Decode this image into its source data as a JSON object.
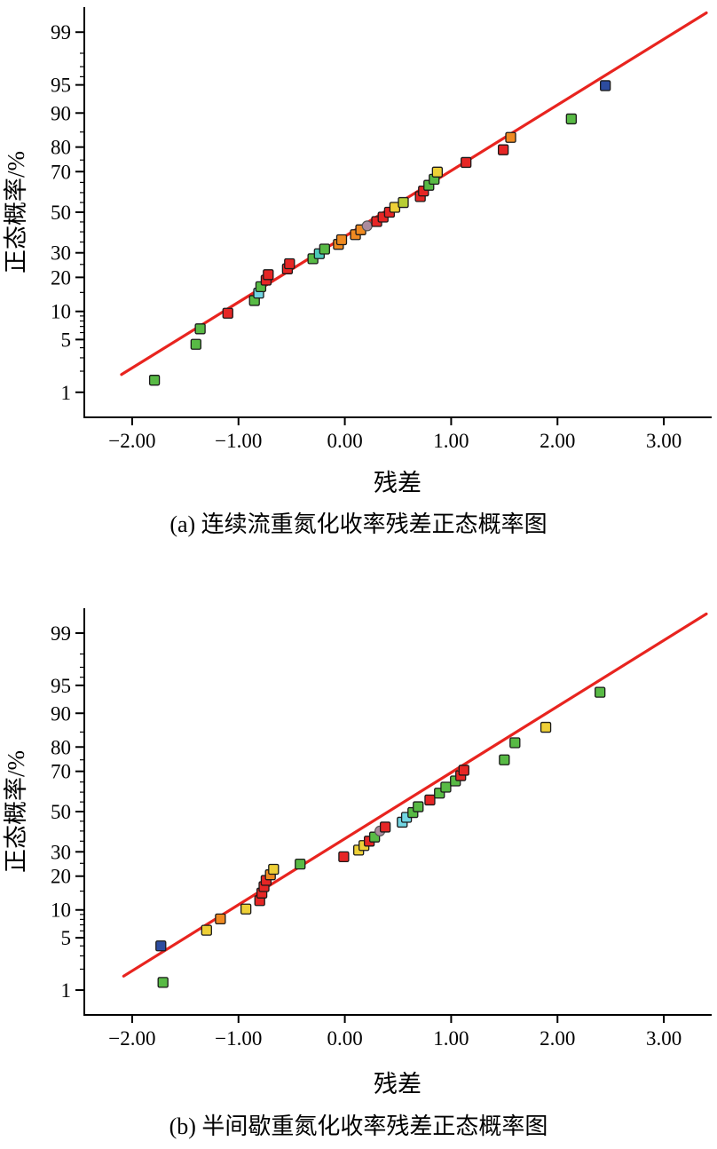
{
  "palette": {
    "green": "#58ba45",
    "red": "#e62625",
    "orange": "#ef8a21",
    "yellow": "#eed037",
    "olive": "#b8cf35",
    "cyan": "#72d5e2",
    "teal": "#4cc9b8",
    "blue": "#2c4c9f",
    "gray": "#ab8b9e"
  },
  "chart_data": [
    {
      "type": "scatter",
      "subtype": "normal-probability-plot",
      "title": "(a) 连续流重氮化收率残差正态概率图",
      "xlabel": "残差",
      "ylabel": "正态概率/%",
      "grid": false,
      "legend": "none",
      "xlim": [
        -2.45,
        3.45
      ],
      "probit_lim": [
        -2.65,
        2.65
      ],
      "x_ticks": [
        -2,
        -1,
        0,
        1,
        2,
        3
      ],
      "x_tick_labels": [
        "−2.00",
        "−1.00",
        "0.00",
        "1.00",
        "2.00",
        "3.00"
      ],
      "y_ticks_percent": [
        1,
        5,
        10,
        20,
        30,
        50,
        70,
        80,
        90,
        95,
        99
      ],
      "y_ticks_minor_percent": [
        2,
        3,
        4,
        6,
        7,
        8,
        9,
        15,
        25,
        35,
        40,
        45,
        55,
        60,
        65,
        75,
        85,
        96,
        97,
        98
      ],
      "trend_line": {
        "x1": -2.1,
        "p1": 1.8,
        "x2": 3.4,
        "p2": 99.5,
        "color": "#e8241f"
      },
      "points": [
        {
          "x": -1.79,
          "p": 1.5,
          "c": "green"
        },
        {
          "x": -1.4,
          "p": 4.4,
          "c": "green"
        },
        {
          "x": -1.36,
          "p": 6.6,
          "c": "green"
        },
        {
          "x": -1.1,
          "p": 9.6,
          "c": "red"
        },
        {
          "x": -0.85,
          "p": 12.7,
          "c": "green"
        },
        {
          "x": -0.81,
          "p": 14.8,
          "c": "cyan"
        },
        {
          "x": -0.79,
          "p": 16.8,
          "c": "green"
        },
        {
          "x": -0.74,
          "p": 19.0,
          "c": "red"
        },
        {
          "x": -0.72,
          "p": 21.0,
          "c": "red"
        },
        {
          "x": -0.54,
          "p": 23.2,
          "c": "red"
        },
        {
          "x": -0.52,
          "p": 25.3,
          "c": "red"
        },
        {
          "x": -0.3,
          "p": 27.4,
          "c": "green"
        },
        {
          "x": -0.24,
          "p": 29.6,
          "c": "teal"
        },
        {
          "x": -0.19,
          "p": 31.7,
          "c": "green"
        },
        {
          "x": -0.06,
          "p": 33.9,
          "c": "orange"
        },
        {
          "x": -0.03,
          "p": 36.1,
          "c": "orange"
        },
        {
          "x": 0.1,
          "p": 38.6,
          "c": "orange"
        },
        {
          "x": 0.15,
          "p": 41.0,
          "c": "orange"
        },
        {
          "x": 0.21,
          "p": 43.0,
          "c": "gray",
          "s": "circle"
        },
        {
          "x": 0.3,
          "p": 45.2,
          "c": "red"
        },
        {
          "x": 0.36,
          "p": 47.5,
          "c": "red"
        },
        {
          "x": 0.42,
          "p": 50.0,
          "c": "red"
        },
        {
          "x": 0.47,
          "p": 52.5,
          "c": "yellow"
        },
        {
          "x": 0.55,
          "p": 55.0,
          "c": "olive"
        },
        {
          "x": 0.71,
          "p": 58.0,
          "c": "red"
        },
        {
          "x": 0.74,
          "p": 60.8,
          "c": "red"
        },
        {
          "x": 0.79,
          "p": 63.6,
          "c": "green"
        },
        {
          "x": 0.84,
          "p": 66.5,
          "c": "green"
        },
        {
          "x": 0.87,
          "p": 69.8,
          "c": "yellow"
        },
        {
          "x": 1.14,
          "p": 74.0,
          "c": "red"
        },
        {
          "x": 1.49,
          "p": 79.0,
          "c": "red"
        },
        {
          "x": 1.56,
          "p": 83.3,
          "c": "orange"
        },
        {
          "x": 2.13,
          "p": 88.6,
          "c": "green"
        },
        {
          "x": 2.45,
          "p": 94.9,
          "c": "blue"
        }
      ]
    },
    {
      "type": "scatter",
      "subtype": "normal-probability-plot",
      "title": "(b) 半间歇重氮化收率残差正态概率图",
      "xlabel": "残差",
      "ylabel": "正态概率/%",
      "grid": false,
      "legend": "none",
      "xlim": [
        -2.45,
        3.45
      ],
      "probit_lim": [
        -2.65,
        2.65
      ],
      "x_ticks": [
        -2,
        -1,
        0,
        1,
        2,
        3
      ],
      "x_tick_labels": [
        "−2.00",
        "−1.00",
        "0.00",
        "1.00",
        "2.00",
        "3.00"
      ],
      "y_ticks_percent": [
        1,
        5,
        10,
        20,
        30,
        50,
        70,
        80,
        90,
        95,
        99
      ],
      "y_ticks_minor_percent": [
        2,
        3,
        4,
        6,
        7,
        8,
        9,
        15,
        25,
        35,
        40,
        45,
        55,
        60,
        65,
        75,
        85,
        96,
        97,
        98
      ],
      "trend_line": {
        "x1": -2.08,
        "p1": 1.6,
        "x2": 3.4,
        "p2": 99.5,
        "color": "#e8241f"
      },
      "points": [
        {
          "x": -1.71,
          "p": 1.3,
          "c": "green"
        },
        {
          "x": -1.73,
          "p": 4.0,
          "c": "blue"
        },
        {
          "x": -1.3,
          "p": 6.1,
          "c": "yellow"
        },
        {
          "x": -1.17,
          "p": 8.1,
          "c": "orange"
        },
        {
          "x": -0.93,
          "p": 10.2,
          "c": "yellow"
        },
        {
          "x": -0.8,
          "p": 12.3,
          "c": "red"
        },
        {
          "x": -0.78,
          "p": 14.4,
          "c": "red"
        },
        {
          "x": -0.76,
          "p": 16.4,
          "c": "red"
        },
        {
          "x": -0.74,
          "p": 18.5,
          "c": "red"
        },
        {
          "x": -0.7,
          "p": 20.5,
          "c": "orange"
        },
        {
          "x": -0.67,
          "p": 22.6,
          "c": "yellow"
        },
        {
          "x": -0.42,
          "p": 24.7,
          "c": "green"
        },
        {
          "x": -0.01,
          "p": 27.8,
          "c": "red"
        },
        {
          "x": 0.13,
          "p": 30.8,
          "c": "yellow"
        },
        {
          "x": 0.18,
          "p": 32.9,
          "c": "yellow"
        },
        {
          "x": 0.23,
          "p": 35.0,
          "c": "red"
        },
        {
          "x": 0.28,
          "p": 37.0,
          "c": "green"
        },
        {
          "x": 0.33,
          "p": 40.0,
          "c": "gray",
          "s": "circle"
        },
        {
          "x": 0.38,
          "p": 42.0,
          "c": "red"
        },
        {
          "x": 0.54,
          "p": 44.5,
          "c": "cyan"
        },
        {
          "x": 0.58,
          "p": 47.0,
          "c": "cyan"
        },
        {
          "x": 0.64,
          "p": 49.5,
          "c": "green"
        },
        {
          "x": 0.69,
          "p": 52.5,
          "c": "green"
        },
        {
          "x": 0.8,
          "p": 56.0,
          "c": "red"
        },
        {
          "x": 0.89,
          "p": 59.5,
          "c": "green"
        },
        {
          "x": 0.95,
          "p": 62.5,
          "c": "green"
        },
        {
          "x": 1.04,
          "p": 65.5,
          "c": "green"
        },
        {
          "x": 1.09,
          "p": 68.0,
          "c": "red"
        },
        {
          "x": 1.12,
          "p": 70.5,
          "c": "red"
        },
        {
          "x": 1.5,
          "p": 75.0,
          "c": "green"
        },
        {
          "x": 1.6,
          "p": 81.5,
          "c": "green"
        },
        {
          "x": 1.89,
          "p": 86.4,
          "c": "yellow"
        },
        {
          "x": 2.4,
          "p": 94.0,
          "c": "green"
        }
      ]
    }
  ]
}
